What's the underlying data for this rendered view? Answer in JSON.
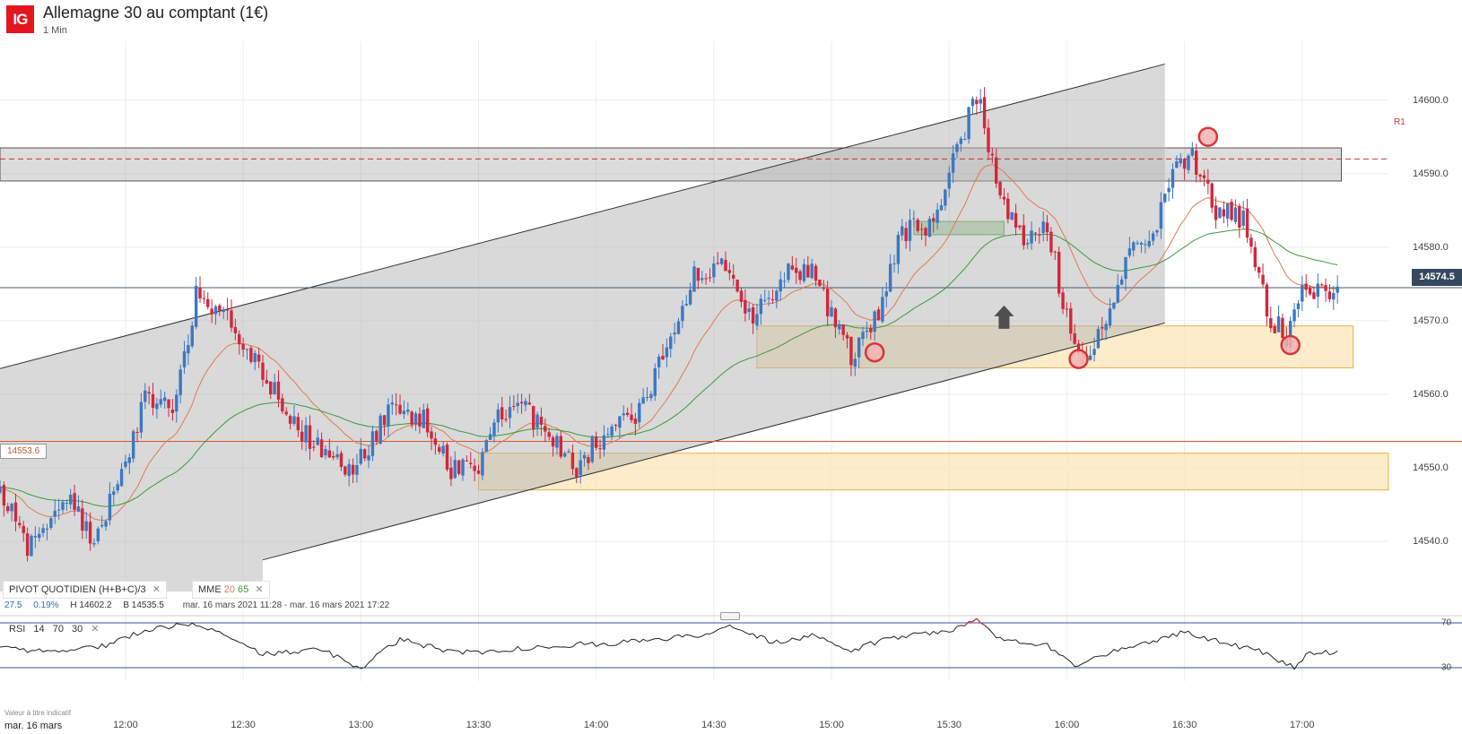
{
  "header": {
    "logo_text": "IG",
    "title": "Allemagne 30 au comptant (1€)",
    "timeframe": "1 Min"
  },
  "colors": {
    "up": "#3a78c3",
    "down": "#d3263b",
    "ema20": "#e07a53",
    "ema65": "#3c9a3c",
    "pivot_line": "#d35a2a",
    "r1_line": "#c0392b",
    "zone_yellow": "#fbe6b8",
    "zone_green": "#a9d5a0",
    "rsi_line": "#222222",
    "rsi_overbought": "#e0262a",
    "rsi_level": "#2c5a9a"
  },
  "legend": {
    "pivot": {
      "name": "PIVOT",
      "period": "QUOTIDIEN",
      "formula": "(H+B+C)/3",
      "close_icon": "close-icon"
    },
    "mme": {
      "name": "MME",
      "fast": "20",
      "slow": "65",
      "close_icon": "close-icon"
    },
    "stats": {
      "change": "27.5",
      "change_pct": "0.19%",
      "high": "H 14602.2",
      "low": "B 14535.5",
      "period": "mar. 16 mars 2021 11:28 - mar. 16 mars 2021 17:22"
    },
    "rsi": {
      "name": "RSI",
      "period": "14",
      "upper": "70",
      "lower": "30",
      "close_icon": "close-icon"
    }
  },
  "disclaimer": "Valeur à titre indicatif",
  "date_label": "mar. 16 mars",
  "last_price": "14574.5",
  "pivot_value": "14553.6",
  "r1_label": "R1",
  "chart_data": {
    "type": "candlestick",
    "instrument": "Allemagne 30 au comptant (1€)",
    "interval": "1 Min",
    "x_ticks": [
      "12:00",
      "12:30",
      "13:00",
      "13:30",
      "14:00",
      "14:30",
      "15:00",
      "15:30",
      "16:00",
      "16:30",
      "17:00"
    ],
    "y_ticks": [
      14540.0,
      14550.0,
      14560.0,
      14570.0,
      14580.0,
      14590.0,
      14600.0
    ],
    "ylim": [
      14533.2,
      14608.0
    ],
    "xlim": [
      "11:28",
      "17:22"
    ],
    "last_price": 14574.5,
    "session_high": 14602.2,
    "session_low": 14535.5,
    "pivot": 14553.6,
    "r1": 14592.0,
    "ema_periods": [
      20,
      65
    ],
    "anchors": [
      [
        "11:28",
        14547.5
      ],
      [
        "11:35",
        14539.0
      ],
      [
        "11:45",
        14546.5
      ],
      [
        "11:52",
        14540.0
      ],
      [
        "12:00",
        14551.0
      ],
      [
        "12:05",
        14559.5
      ],
      [
        "12:12",
        14557.5
      ],
      [
        "12:18",
        14573.5
      ],
      [
        "12:26",
        14570.0
      ],
      [
        "12:35",
        14563.0
      ],
      [
        "12:45",
        14555.0
      ],
      [
        "12:58",
        14549.0
      ],
      [
        "13:08",
        14559.0
      ],
      [
        "13:16",
        14556.5
      ],
      [
        "13:23",
        14550.0
      ],
      [
        "13:30",
        14549.0
      ],
      [
        "13:35",
        14557.5
      ],
      [
        "13:43",
        14557.5
      ],
      [
        "13:55",
        14549.5
      ],
      [
        "14:02",
        14555.0
      ],
      [
        "14:10",
        14557.0
      ],
      [
        "14:18",
        14566.0
      ],
      [
        "14:25",
        14576.0
      ],
      [
        "14:33",
        14578.0
      ],
      [
        "14:40",
        14570.0
      ],
      [
        "14:48",
        14577.0
      ],
      [
        "14:55",
        14577.0
      ],
      [
        "15:05",
        14565.0
      ],
      [
        "15:12",
        14570.5
      ],
      [
        "15:18",
        14582.0
      ],
      [
        "15:26",
        14583.0
      ],
      [
        "15:32",
        14593.0
      ],
      [
        "15:37",
        14601.0
      ],
      [
        "15:44",
        14585.0
      ],
      [
        "15:50",
        14581.0
      ],
      [
        "15:55",
        14583.0
      ],
      [
        "16:00",
        14570.0
      ],
      [
        "16:03",
        14565.5
      ],
      [
        "16:10",
        14568.5
      ],
      [
        "16:15",
        14579.0
      ],
      [
        "16:22",
        14581.0
      ],
      [
        "16:27",
        14591.0
      ],
      [
        "16:32",
        14592.0
      ],
      [
        "16:38",
        14585.0
      ],
      [
        "16:45",
        14584.0
      ],
      [
        "16:52",
        14570.0
      ],
      [
        "16:56",
        14568.0
      ],
      [
        "17:00",
        14575.0
      ],
      [
        "17:09",
        14573.5
      ]
    ],
    "rsi": {
      "upper": 70,
      "lower": 30,
      "ylim": [
        18,
        82
      ],
      "anchors": [
        [
          "11:28",
          48
        ],
        [
          "11:40",
          44
        ],
        [
          "11:55",
          50
        ],
        [
          "12:05",
          64
        ],
        [
          "12:18",
          70
        ],
        [
          "12:35",
          42
        ],
        [
          "12:50",
          46
        ],
        [
          "13:00",
          30
        ],
        [
          "13:10",
          55
        ],
        [
          "13:25",
          43
        ],
        [
          "13:35",
          45
        ],
        [
          "13:50",
          50
        ],
        [
          "14:05",
          52
        ],
        [
          "14:25",
          58
        ],
        [
          "14:35",
          68
        ],
        [
          "14:45",
          52
        ],
        [
          "14:55",
          58
        ],
        [
          "15:05",
          45
        ],
        [
          "15:15",
          57
        ],
        [
          "15:30",
          63
        ],
        [
          "15:37",
          74
        ],
        [
          "15:42",
          56
        ],
        [
          "15:55",
          50
        ],
        [
          "16:02",
          32
        ],
        [
          "16:12",
          45
        ],
        [
          "16:20",
          52
        ],
        [
          "16:30",
          62
        ],
        [
          "16:40",
          52
        ],
        [
          "16:50",
          44
        ],
        [
          "16:58",
          30
        ],
        [
          "17:02",
          44
        ],
        [
          "17:09",
          44
        ]
      ]
    },
    "channel": {
      "upper": [
        [
          "11:28",
          14563.5
        ],
        [
          "16:25",
          14604.9
        ]
      ],
      "lower": [
        [
          "12:35",
          14537.5
        ],
        [
          "16:25",
          14569.7
        ]
      ]
    },
    "zones": [
      {
        "kind": "resistance",
        "color": "grey",
        "from": "11:28",
        "to": "17:10",
        "low": 14589.0,
        "high": 14593.5
      },
      {
        "kind": "support",
        "color": "yellow",
        "from": "14:41",
        "to": "17:13",
        "low": 14563.6,
        "high": 14569.3
      },
      {
        "kind": "support",
        "color": "yellow",
        "from": "13:30",
        "to": "17:22",
        "low": 14547.0,
        "high": 14552.0
      },
      {
        "kind": "support",
        "color": "green",
        "from": "15:21",
        "to": "15:44",
        "low": 14581.7,
        "high": 14583.5
      }
    ],
    "markers": [
      {
        "kind": "circle",
        "time": "15:11",
        "price": 14565.7
      },
      {
        "kind": "circle",
        "time": "16:03",
        "price": 14564.8
      },
      {
        "kind": "circle",
        "time": "16:36",
        "price": 14595.0
      },
      {
        "kind": "circle",
        "time": "16:57",
        "price": 14566.7
      },
      {
        "kind": "arrow-up",
        "time": "15:44",
        "price": 14570.0
      }
    ]
  }
}
